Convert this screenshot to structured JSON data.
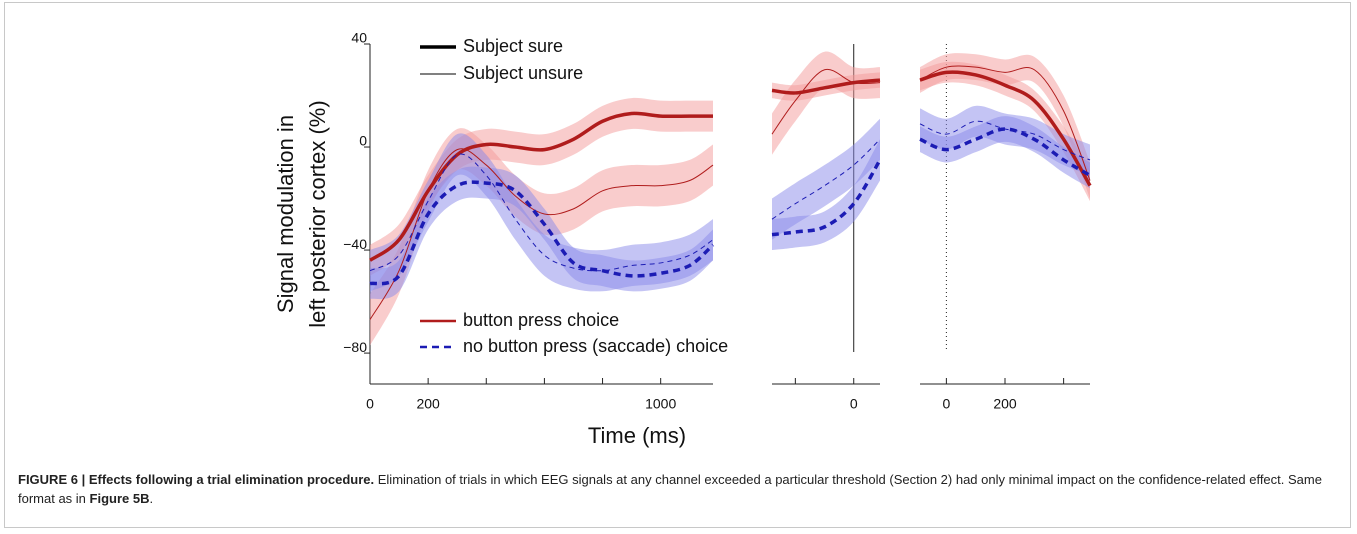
{
  "chart_data": {
    "type": "line",
    "y_label": [
      "Signal modulation in",
      "left posterior cortex (%)"
    ],
    "x_label": "Time (ms)",
    "ylim": [
      -92,
      40
    ],
    "yticks": [
      40,
      0,
      {
        "value": -40,
        "label": "−40"
      },
      {
        "value": -80,
        "label": "−80"
      }
    ],
    "width_legend": [
      {
        "name": "Subject sure",
        "width": 3.5
      },
      {
        "name": "Subject unsure",
        "width": 1
      }
    ],
    "color_legend": [
      {
        "name": "button press choice",
        "color": "#b01c1c",
        "band_color": "#f39a9a",
        "dash": "solid"
      },
      {
        "name": "no button press (saccade) choice",
        "color": "#1c1cb4",
        "band_color": "#8a8aea",
        "dash": "dashed"
      }
    ],
    "panels": [
      {
        "xlim": [
          0,
          1180
        ],
        "xticks": [
          0,
          200,
          1000
        ],
        "xminor_ticks": [
          400,
          600,
          800
        ],
        "x": [
          0,
          100,
          200,
          300,
          400,
          500,
          600,
          700,
          800,
          900,
          1000,
          1100,
          1180
        ],
        "series": [
          {
            "choice": 0,
            "certainty": 0,
            "values": [
              -44,
              -36,
              -17,
              -3,
              1,
              0,
              -1,
              3,
              10,
              13,
              12,
              12,
              12
            ],
            "band": [
              6,
              6,
              6,
              6,
              6,
              6,
              6,
              6,
              6,
              6,
              6,
              6,
              6
            ]
          },
          {
            "choice": 0,
            "certainty": 1,
            "values": [
              -67,
              -48,
              -17,
              -1,
              -7,
              -19,
              -26,
              -24,
              -17,
              -15,
              -15,
              -13,
              -7
            ],
            "band": [
              10,
              9,
              8,
              8,
              8,
              8,
              8,
              8,
              8,
              8,
              8,
              8,
              8
            ]
          },
          {
            "choice": 1,
            "certainty": 0,
            "values": [
              -53,
              -50,
              -26,
              -15,
              -14,
              -17,
              -30,
              -45,
              -48,
              -50,
              -49,
              -46,
              -38
            ],
            "band": [
              6,
              6,
              6,
              6,
              6,
              6,
              6,
              6,
              6,
              6,
              6,
              6,
              6
            ]
          },
          {
            "choice": 1,
            "certainty": 1,
            "values": [
              -48,
              -42,
              -21,
              -3,
              -11,
              -28,
              -42,
              -47,
              -48,
              -46,
              -45,
              -42,
              -36
            ],
            "band": [
              8,
              8,
              8,
              8,
              8,
              8,
              8,
              8,
              8,
              8,
              8,
              8,
              8
            ]
          }
        ]
      },
      {
        "xlim": [
          -280,
          90
        ],
        "xticks": [
          0
        ],
        "xminor_ticks": [
          -200
        ],
        "zero_line": "solid",
        "x": [
          -280,
          -200,
          -100,
          0,
          90
        ],
        "series": [
          {
            "choice": 0,
            "certainty": 0,
            "values": [
              22,
              21,
              23,
              25,
              26
            ],
            "band": [
              3,
              3,
              3,
              3,
              3
            ]
          },
          {
            "choice": 0,
            "certainty": 1,
            "values": [
              5,
              18,
              30,
              25,
              25
            ],
            "band": [
              8,
              8,
              7,
              6,
              6
            ]
          },
          {
            "choice": 1,
            "certainty": 0,
            "values": [
              -34,
              -33,
              -31,
              -22,
              -5
            ],
            "band": [
              6,
              6,
              6,
              7,
              8
            ]
          },
          {
            "choice": 1,
            "certainty": 1,
            "values": [
              -28,
              -22,
              -15,
              -7,
              3
            ],
            "band": [
              8,
              8,
              8,
              8,
              8
            ]
          }
        ]
      },
      {
        "xlim": [
          -90,
          490
        ],
        "xticks": [
          0,
          200
        ],
        "xminor_ticks": [
          400
        ],
        "zero_line": "dotted",
        "x": [
          -90,
          0,
          100,
          200,
          300,
          400,
          490
        ],
        "series": [
          {
            "choice": 0,
            "certainty": 0,
            "values": [
              26,
              29,
              28,
              24,
              18,
              3,
              -15
            ],
            "band": [
              4,
              4,
              4,
              4,
              4,
              5,
              6
            ]
          },
          {
            "choice": 0,
            "certainty": 1,
            "values": [
              26,
              31,
              31,
              29,
              30,
              14,
              -13
            ],
            "band": [
              5,
              5,
              5,
              5,
              5,
              6,
              7
            ]
          },
          {
            "choice": 1,
            "certainty": 0,
            "values": [
              3,
              -1,
              3,
              7,
              3,
              -5,
              -11
            ],
            "band": [
              5,
              5,
              5,
              5,
              5,
              5,
              5
            ]
          },
          {
            "choice": 1,
            "certainty": 1,
            "values": [
              9,
              5,
              10,
              7,
              5,
              -1,
              -5
            ],
            "band": [
              6,
              6,
              6,
              6,
              6,
              6,
              6
            ]
          }
        ]
      }
    ]
  },
  "caption": {
    "label": "FIGURE 6 | Effects following a trial elimination procedure.",
    "text": " Elimination of trials in which EEG signals at any channel exceeded a particular threshold (Section 2) had only minimal impact on the confidence-related effect. Same format as in ",
    "ref": "Figure 5B",
    "end": "."
  }
}
